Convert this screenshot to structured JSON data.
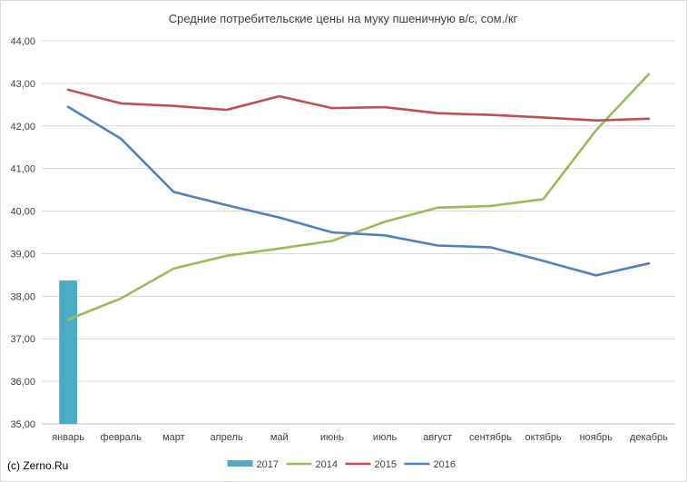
{
  "chart_data": {
    "type": "line",
    "title": "Средние потребительские цены на муку пшеничную в/с, сом./кг",
    "xlabel": "",
    "ylabel": "",
    "categories": [
      "январь",
      "февраль",
      "март",
      "апрель",
      "май",
      "июнь",
      "июль",
      "август",
      "сентябрь",
      "октябрь",
      "ноябрь",
      "декабрь"
    ],
    "ylim": [
      35,
      44
    ],
    "yticks": [
      "35,00",
      "36,00",
      "37,00",
      "38,00",
      "39,00",
      "40,00",
      "41,00",
      "42,00",
      "43,00",
      "44,00"
    ],
    "grid": true,
    "legend_position": "bottom",
    "series": [
      {
        "name": "2017",
        "kind": "bar",
        "color": "#4bacc6",
        "values": [
          38.37,
          null,
          null,
          null,
          null,
          null,
          null,
          null,
          null,
          null,
          null,
          null
        ]
      },
      {
        "name": "2014",
        "kind": "line",
        "color": "#9bbb59",
        "values": [
          37.45,
          37.95,
          38.65,
          38.95,
          39.12,
          39.3,
          39.75,
          40.08,
          40.12,
          40.28,
          41.9,
          43.22
        ]
      },
      {
        "name": "2015",
        "kind": "line",
        "color": "#c0504d",
        "values": [
          42.85,
          42.53,
          42.47,
          42.38,
          42.7,
          42.42,
          42.44,
          42.3,
          42.26,
          42.2,
          42.13,
          42.17
        ]
      },
      {
        "name": "2016",
        "kind": "line",
        "color": "#4f81bd",
        "values": [
          42.45,
          41.7,
          40.45,
          40.14,
          39.85,
          39.5,
          39.43,
          39.19,
          39.15,
          38.83,
          38.49,
          38.77
        ]
      }
    ]
  },
  "credit": "(c) Zerno.Ru"
}
